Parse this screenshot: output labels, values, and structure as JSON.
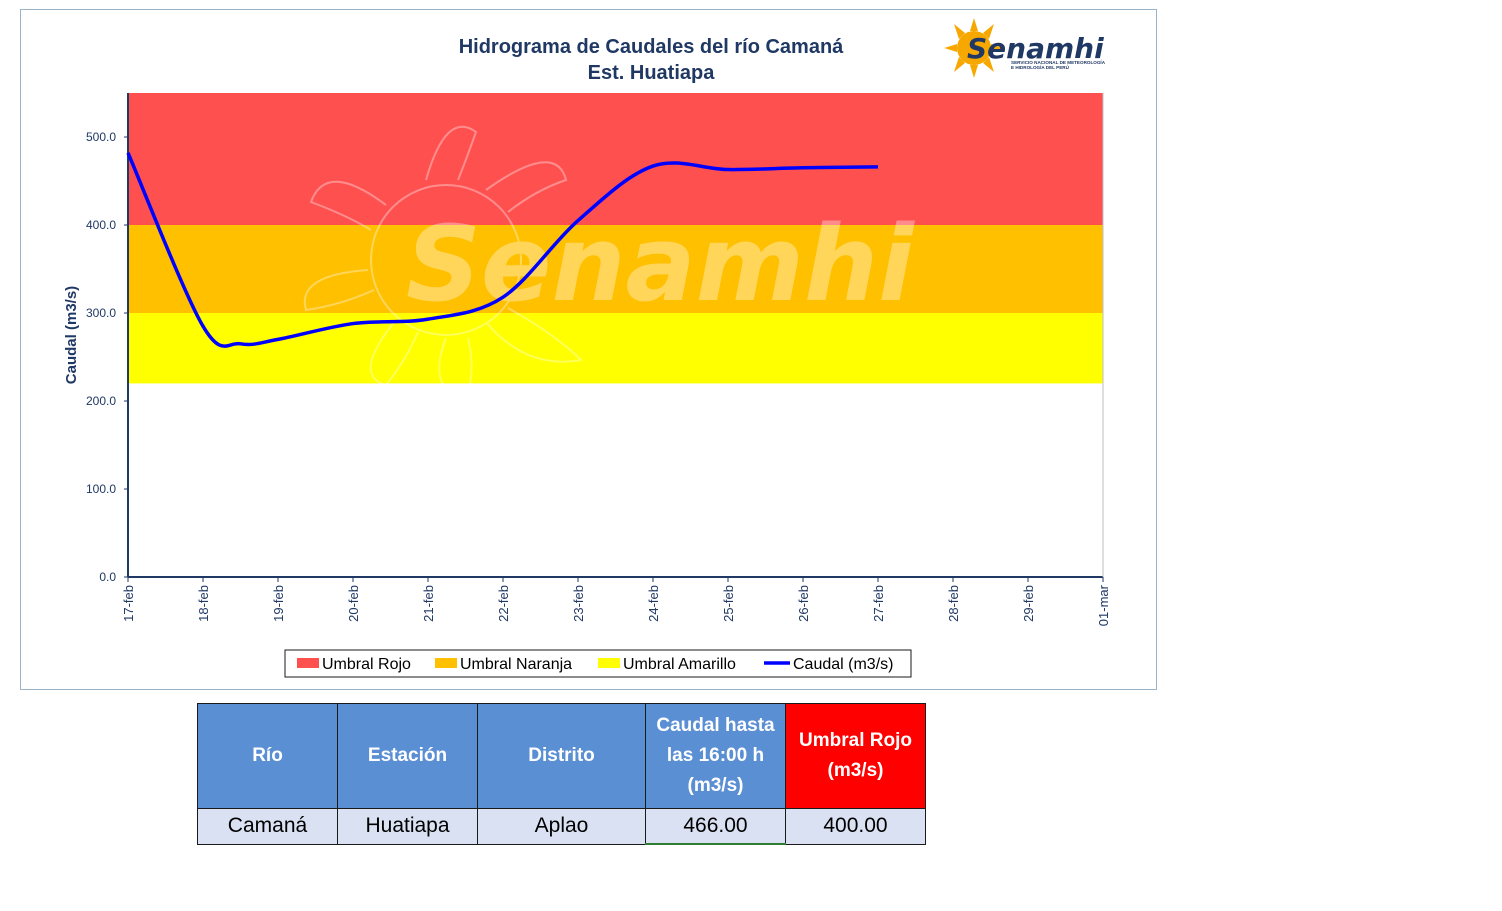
{
  "chart": {
    "title_line1": "Hidrograma de Caudales del río Camaná",
    "title_line2": "Est. Huatiapa",
    "logo": {
      "name": "Senamhi",
      "subtitle_line1": "SERVICIO NACIONAL DE METEOROLOGÍA",
      "subtitle_line2": "E HIDROLOGÍA DEL PERÚ"
    },
    "watermark": "Senamhi"
  },
  "chart_data": {
    "type": "line",
    "ylabel": "Caudal (m3/s)",
    "xlabel": "",
    "ylim": [
      0,
      550
    ],
    "y_ticks": [
      "0.0",
      "100.0",
      "200.0",
      "300.0",
      "400.0",
      "500.0"
    ],
    "x_ticks": [
      "17-feb",
      "18-feb",
      "19-feb",
      "20-feb",
      "21-feb",
      "22-feb",
      "23-feb",
      "24-feb",
      "25-feb",
      "26-feb",
      "27-feb",
      "28-feb",
      "29-feb",
      "01-mar"
    ],
    "thresholds": [
      {
        "name": "Umbral Rojo",
        "from": 400,
        "to": 550,
        "color": "#ff5050"
      },
      {
        "name": "Umbral Naranja",
        "from": 300,
        "to": 400,
        "color": "#ffc000"
      },
      {
        "name": "Umbral Amarillo",
        "from": 220,
        "to": 300,
        "color": "#ffff00"
      }
    ],
    "series": [
      {
        "name": "Caudal (m3/s)",
        "color": "#0000ff",
        "points": [
          {
            "x": "17-feb",
            "y": 482
          },
          {
            "x": "18-feb",
            "y": 285
          },
          {
            "x": "18-feb 12h",
            "y": 265
          },
          {
            "x": "19-feb",
            "y": 270
          },
          {
            "x": "20-feb",
            "y": 288
          },
          {
            "x": "21-feb",
            "y": 293
          },
          {
            "x": "22-feb",
            "y": 318
          },
          {
            "x": "23-feb",
            "y": 405
          },
          {
            "x": "24-feb",
            "y": 467
          },
          {
            "x": "25-feb",
            "y": 463
          },
          {
            "x": "26-feb",
            "y": 465
          },
          {
            "x": "27-feb",
            "y": 466
          }
        ]
      }
    ],
    "legend_position": "bottom",
    "grid": false
  },
  "table": {
    "headers": [
      "Río",
      "Estación",
      "Distrito",
      "Caudal hasta las 16:00 h (m3/s)",
      "Umbral Rojo (m3/s)"
    ],
    "header_lines": {
      "caudal": [
        "Caudal hasta",
        "las 16:00 h",
        "(m3/s)"
      ],
      "umbral": [
        "Umbral Rojo",
        "(m3/s)"
      ]
    },
    "row": [
      "Camaná",
      "Huatiapa",
      "Aplao",
      "466.00",
      "400.00"
    ]
  }
}
